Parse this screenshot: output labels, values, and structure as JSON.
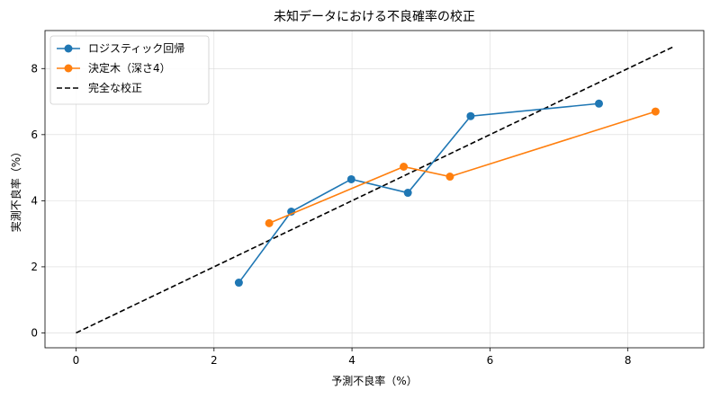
{
  "chart_data": {
    "type": "line",
    "title": "未知データにおける不良確率の校正",
    "xlabel": "予測不良率（%）",
    "ylabel": "実測不良率（%）",
    "xlim": [
      -0.45,
      9.1
    ],
    "ylim": [
      -0.45,
      9.15
    ],
    "xticks": [
      0,
      2,
      4,
      6,
      8
    ],
    "yticks": [
      0,
      2,
      4,
      6,
      8
    ],
    "grid": true,
    "legend_position": "top-left",
    "series": [
      {
        "name": "ロジスティック回帰",
        "color": "#1f77b4",
        "marker": "circle",
        "style": "solid",
        "x": [
          2.36,
          3.12,
          3.99,
          4.81,
          5.72,
          7.58
        ],
        "y": [
          1.52,
          3.67,
          4.65,
          4.24,
          6.56,
          6.94
        ]
      },
      {
        "name": "決定木（深さ4）",
        "color": "#ff7f0e",
        "marker": "circle",
        "style": "solid",
        "x": [
          2.8,
          4.75,
          5.42,
          8.4
        ],
        "y": [
          3.32,
          5.03,
          4.73,
          6.7
        ]
      },
      {
        "name": "完全な校正",
        "color": "#000000",
        "marker": "none",
        "style": "dashed",
        "x": [
          0,
          8.65
        ],
        "y": [
          0,
          8.65
        ]
      }
    ]
  }
}
